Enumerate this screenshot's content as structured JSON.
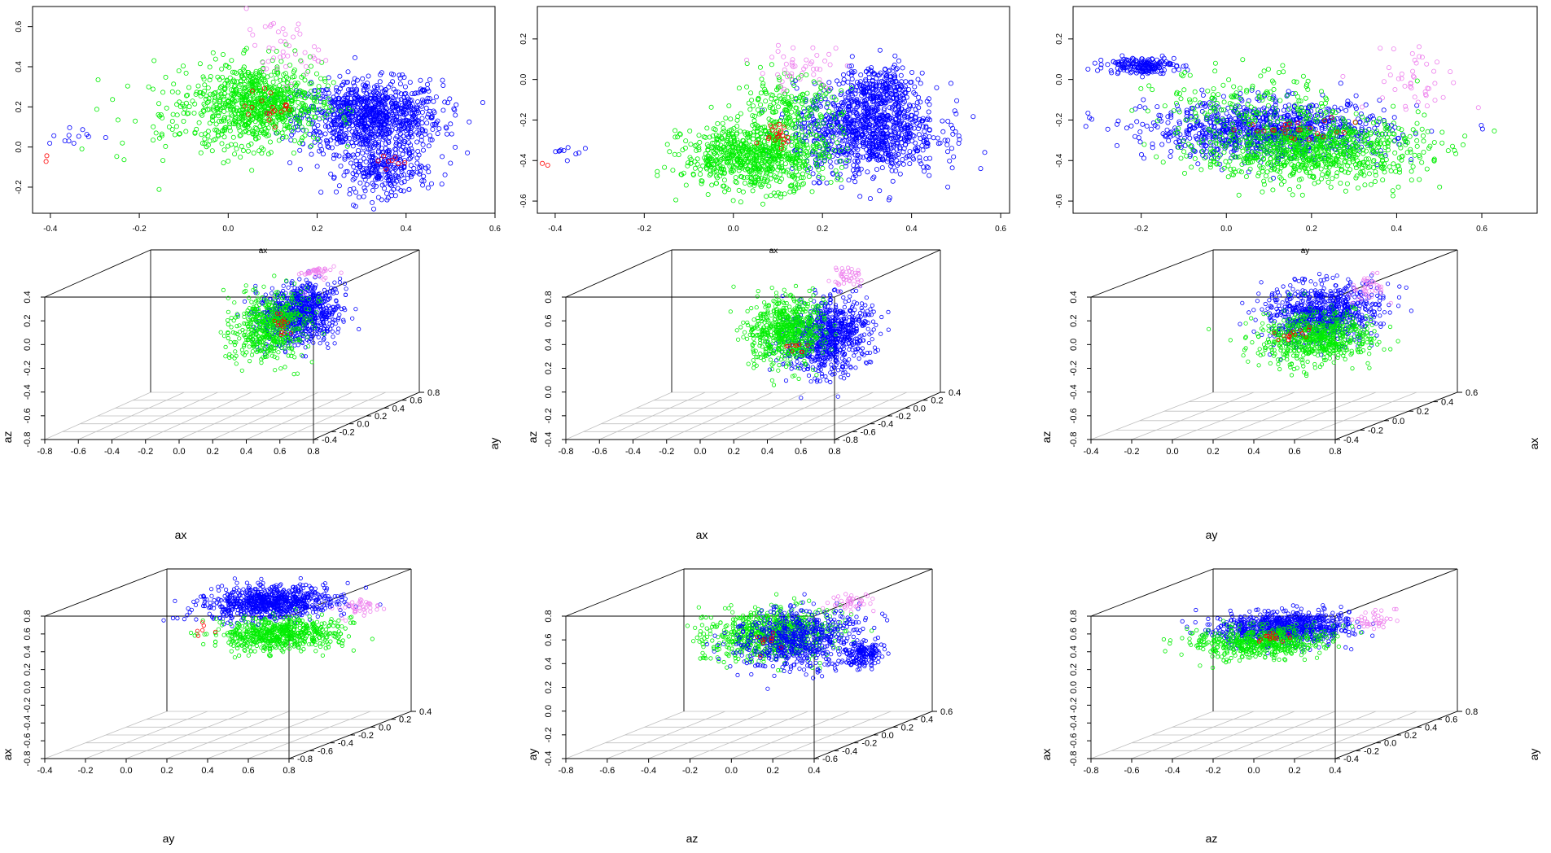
{
  "colors": {
    "blue": "#0000ff",
    "green": "#00ee00",
    "violet": "#ee82ee",
    "red": "#ff0000",
    "axis": "#000000",
    "grid": "#bfbfbf"
  },
  "chart_data": [
    {
      "type": "scatter",
      "xlabel": "ax",
      "ylabel": "",
      "xlim": [
        -0.44,
        0.6
      ],
      "ylim": [
        -0.33,
        0.7
      ],
      "xticks": [
        "-0.4",
        "-0.2",
        "0.0",
        "0.2",
        "0.4",
        "0.6"
      ],
      "yticks": [
        "-0.2",
        "0.0",
        "0.2",
        "0.4",
        "0.6"
      ],
      "clusters": [
        {
          "color": "blue",
          "cx": 0.32,
          "cy": 0.15,
          "sx": 0.08,
          "sy": 0.09,
          "n": 950
        },
        {
          "color": "blue",
          "cx": 0.35,
          "cy": -0.12,
          "sx": 0.05,
          "sy": 0.06,
          "n": 250
        },
        {
          "color": "green",
          "cx": 0.07,
          "cy": 0.22,
          "sx": 0.07,
          "sy": 0.1,
          "n": 750
        },
        {
          "color": "green",
          "cx": -0.05,
          "cy": 0.15,
          "sx": 0.1,
          "sy": 0.12,
          "n": 120
        },
        {
          "color": "violet",
          "cx": 0.12,
          "cy": 0.48,
          "sx": 0.04,
          "sy": 0.08,
          "n": 45
        },
        {
          "color": "red",
          "cx": 0.1,
          "cy": 0.2,
          "sx": 0.03,
          "sy": 0.04,
          "n": 20
        },
        {
          "color": "red",
          "cx": 0.37,
          "cy": -0.1,
          "sx": 0.02,
          "sy": 0.03,
          "n": 8
        },
        {
          "color": "blue",
          "cx": -0.36,
          "cy": 0.06,
          "sx": 0.03,
          "sy": 0.03,
          "n": 12
        },
        {
          "color": "red",
          "cx": -0.41,
          "cy": -0.05,
          "sx": 0.01,
          "sy": 0.03,
          "n": 2
        }
      ]
    },
    {
      "type": "scatter",
      "xlabel": "ax",
      "ylabel": "",
      "xlim": [
        -0.44,
        0.62
      ],
      "ylim": [
        -0.66,
        0.36
      ],
      "xticks": [
        "-0.4",
        "-0.2",
        "0.0",
        "0.2",
        "0.4",
        "0.6"
      ],
      "yticks": [
        "-0.6",
        "-0.4",
        "-0.2",
        "0.0",
        "0.2"
      ],
      "clusters": [
        {
          "color": "blue",
          "cx": 0.3,
          "cy": -0.25,
          "sx": 0.08,
          "sy": 0.11,
          "n": 950
        },
        {
          "color": "blue",
          "cx": 0.33,
          "cy": -0.05,
          "sx": 0.04,
          "sy": 0.06,
          "n": 200
        },
        {
          "color": "green",
          "cx": 0.05,
          "cy": -0.38,
          "sx": 0.08,
          "sy": 0.08,
          "n": 750
        },
        {
          "color": "green",
          "cx": 0.12,
          "cy": -0.15,
          "sx": 0.06,
          "sy": 0.08,
          "n": 200
        },
        {
          "color": "violet",
          "cx": 0.15,
          "cy": 0.05,
          "sx": 0.05,
          "sy": 0.06,
          "n": 45
        },
        {
          "color": "red",
          "cx": 0.1,
          "cy": -0.26,
          "sx": 0.02,
          "sy": 0.03,
          "n": 20
        },
        {
          "color": "blue",
          "cx": -0.37,
          "cy": -0.37,
          "sx": 0.03,
          "sy": 0.03,
          "n": 10
        },
        {
          "color": "red",
          "cx": -0.41,
          "cy": -0.44,
          "sx": 0.01,
          "sy": 0.03,
          "n": 2
        }
      ]
    },
    {
      "type": "scatter",
      "xlabel": "ay",
      "ylabel": "",
      "xlim": [
        -0.36,
        0.73
      ],
      "ylim": [
        -0.66,
        0.36
      ],
      "xticks": [
        "-0.2",
        "0.0",
        "0.2",
        "0.4",
        "0.6"
      ],
      "yticks": [
        "-0.6",
        "-0.4",
        "-0.2",
        "0.0",
        "0.2"
      ],
      "clusters": [
        {
          "color": "blue",
          "cx": 0.1,
          "cy": -0.25,
          "sx": 0.14,
          "sy": 0.07,
          "n": 950
        },
        {
          "color": "blue",
          "cx": -0.2,
          "cy": 0.07,
          "sx": 0.04,
          "sy": 0.02,
          "n": 180
        },
        {
          "color": "green",
          "cx": 0.2,
          "cy": -0.35,
          "sx": 0.13,
          "sy": 0.08,
          "n": 850
        },
        {
          "color": "green",
          "cx": 0.05,
          "cy": -0.1,
          "sx": 0.1,
          "sy": 0.08,
          "n": 150
        },
        {
          "color": "violet",
          "cx": 0.45,
          "cy": 0.0,
          "sx": 0.06,
          "sy": 0.08,
          "n": 45
        },
        {
          "color": "red",
          "cx": 0.15,
          "cy": -0.25,
          "sx": 0.08,
          "sy": 0.03,
          "n": 25
        }
      ]
    },
    {
      "type": "scatter3d",
      "xlabel": "ax",
      "ylabel": "",
      "zlabel": "az",
      "xticks": [
        "-0.8",
        "-0.6",
        "-0.4",
        "-0.2",
        "0.0",
        "0.2",
        "0.4",
        "0.6",
        "0.8"
      ],
      "yticks": [
        "-0.4",
        "-0.2",
        "0.0",
        "0.2",
        "0.4",
        "0.6",
        "0.8"
      ],
      "zticks": [
        "-0.8",
        "-0.6",
        "-0.4",
        "-0.2",
        "0.0",
        "0.2",
        "0.4"
      ],
      "clusters": [
        {
          "color": "blue",
          "cx": 0.45,
          "cy": 0.1,
          "cz": 0.1,
          "sx": 0.1,
          "sy": 0.12,
          "sz": 0.12,
          "n": 800
        },
        {
          "color": "green",
          "cx": 0.3,
          "cy": 0.05,
          "cz": 0.0,
          "sx": 0.1,
          "sy": 0.1,
          "sz": 0.14,
          "n": 500
        },
        {
          "color": "violet",
          "cx": 0.45,
          "cy": 0.3,
          "cz": 0.45,
          "sx": 0.04,
          "sy": 0.05,
          "sz": 0.08,
          "n": 40
        },
        {
          "color": "red",
          "cx": 0.35,
          "cy": 0.1,
          "cz": 0.0,
          "sx": 0.03,
          "sy": 0.03,
          "sz": 0.04,
          "n": 15
        }
      ]
    },
    {
      "type": "scatter3d",
      "xlabel": "ax",
      "ylabel": "ay",
      "zlabel": "az",
      "xticks": [
        "-0.8",
        "-0.6",
        "-0.4",
        "-0.2",
        "0.0",
        "0.2",
        "0.4",
        "0.6",
        "0.8"
      ],
      "yticks": [
        "-0.8",
        "-0.6",
        "-0.4",
        "-0.2",
        "0.0",
        "0.2",
        "0.4"
      ],
      "zticks": [
        "-0.4",
        "-0.2",
        "0.0",
        "0.2",
        "0.4",
        "0.6",
        "0.8"
      ],
      "clusters": [
        {
          "color": "blue",
          "cx": 0.5,
          "cy": -0.3,
          "cz": 0.3,
          "sx": 0.1,
          "sy": 0.15,
          "sz": 0.15,
          "n": 800
        },
        {
          "color": "green",
          "cx": 0.25,
          "cy": -0.3,
          "cz": 0.35,
          "sx": 0.1,
          "sy": 0.1,
          "sz": 0.14,
          "n": 600
        },
        {
          "color": "violet",
          "cx": 0.45,
          "cy": 0.0,
          "cz": 0.7,
          "sx": 0.05,
          "sy": 0.05,
          "sz": 0.05,
          "n": 40
        },
        {
          "color": "red",
          "cx": 0.3,
          "cy": -0.3,
          "cz": 0.2,
          "sx": 0.03,
          "sy": 0.03,
          "sz": 0.03,
          "n": 10
        }
      ]
    },
    {
      "type": "scatter3d",
      "xlabel": "ay",
      "ylabel": "ax",
      "zlabel": "az",
      "xticks": [
        "-0.4",
        "-0.2",
        "0.0",
        "0.2",
        "0.4",
        "0.6",
        "0.8"
      ],
      "yticks": [
        "-0.4",
        "-0.2",
        "0.0",
        "0.2",
        "0.4",
        "0.6"
      ],
      "zticks": [
        "-0.8",
        "-0.6",
        "-0.4",
        "-0.2",
        "0.0",
        "0.2",
        "0.4"
      ],
      "clusters": [
        {
          "color": "blue",
          "cx": 0.35,
          "cy": 0.25,
          "cz": 0.0,
          "sx": 0.12,
          "sy": 0.1,
          "sz": 0.12,
          "n": 800
        },
        {
          "color": "green",
          "cx": 0.4,
          "cy": 0.1,
          "cz": -0.15,
          "sx": 0.13,
          "sy": 0.1,
          "sz": 0.1,
          "n": 600
        },
        {
          "color": "violet",
          "cx": 0.55,
          "cy": 0.3,
          "cz": 0.2,
          "sx": 0.05,
          "sy": 0.05,
          "sz": 0.06,
          "n": 40
        },
        {
          "color": "red",
          "cx": 0.3,
          "cy": 0.1,
          "cz": -0.1,
          "sx": 0.04,
          "sy": 0.03,
          "sz": 0.04,
          "n": 15
        }
      ]
    },
    {
      "type": "scatter3d",
      "xlabel": "ay",
      "ylabel": "",
      "zlabel": "ax",
      "xticks": [
        "-0.4",
        "-0.2",
        "0.0",
        "0.2",
        "0.4",
        "0.6",
        "0.8"
      ],
      "yticks": [
        "-0.8",
        "-0.6",
        "-0.4",
        "-0.2",
        "0.0",
        "0.2",
        "0.4"
      ],
      "zticks": [
        "-0.8",
        "-0.6",
        "-0.4",
        "-0.2",
        "0.0",
        "0.2",
        "0.4",
        "0.6",
        "0.8"
      ],
      "clusters": [
        {
          "color": "blue",
          "cx": 0.3,
          "cy": 0.0,
          "cz": 0.6,
          "sx": 0.15,
          "sy": 0.1,
          "sz": 0.08,
          "n": 800
        },
        {
          "color": "green",
          "cx": 0.35,
          "cy": 0.0,
          "cz": 0.25,
          "sx": 0.15,
          "sy": 0.1,
          "sz": 0.08,
          "n": 600
        },
        {
          "color": "violet",
          "cx": 0.7,
          "cy": 0.1,
          "cz": 0.5,
          "sx": 0.04,
          "sy": 0.04,
          "sz": 0.05,
          "n": 40
        },
        {
          "color": "red",
          "cx": 0.0,
          "cy": 0.0,
          "cz": 0.3,
          "sx": 0.05,
          "sy": 0.03,
          "sz": 0.05,
          "n": 6
        }
      ]
    },
    {
      "type": "scatter3d",
      "xlabel": "az",
      "ylabel": "",
      "zlabel": "ay",
      "xticks": [
        "-0.8",
        "-0.6",
        "-0.4",
        "-0.2",
        "0.0",
        "0.2",
        "0.4"
      ],
      "yticks": [
        "-0.6",
        "-0.4",
        "-0.2",
        "0.0",
        "0.2",
        "0.4",
        "0.6"
      ],
      "zticks": [
        "-0.4",
        "-0.2",
        "0.0",
        "0.2",
        "0.4",
        "0.6",
        "0.8"
      ],
      "clusters": [
        {
          "color": "green",
          "cx": -0.1,
          "cy": 0.0,
          "cz": 0.45,
          "sx": 0.14,
          "sy": 0.12,
          "sz": 0.1,
          "n": 700
        },
        {
          "color": "blue",
          "cx": 0.05,
          "cy": 0.0,
          "cz": 0.4,
          "sx": 0.14,
          "sy": 0.12,
          "sz": 0.12,
          "n": 600
        },
        {
          "color": "blue",
          "cx": 0.25,
          "cy": 0.2,
          "cz": 0.2,
          "sx": 0.04,
          "sy": 0.05,
          "sz": 0.05,
          "n": 150
        },
        {
          "color": "violet",
          "cx": 0.2,
          "cy": 0.2,
          "cz": 0.65,
          "sx": 0.05,
          "sy": 0.05,
          "sz": 0.05,
          "n": 40
        },
        {
          "color": "red",
          "cx": -0.1,
          "cy": 0.0,
          "cz": 0.4,
          "sx": 0.03,
          "sy": 0.03,
          "sz": 0.04,
          "n": 10
        }
      ]
    },
    {
      "type": "scatter3d",
      "xlabel": "az",
      "ylabel": "ay",
      "zlabel": "ax",
      "xticks": [
        "-0.8",
        "-0.6",
        "-0.4",
        "-0.2",
        "0.0",
        "0.2",
        "0.4"
      ],
      "yticks": [
        "-0.4",
        "-0.2",
        "0.0",
        "0.2",
        "0.4",
        "0.6",
        "0.8"
      ],
      "zticks": [
        "-0.8",
        "-0.6",
        "-0.4",
        "-0.2",
        "0.0",
        "0.2",
        "0.4",
        "0.6",
        "0.8"
      ],
      "clusters": [
        {
          "color": "blue",
          "cx": -0.1,
          "cy": 0.1,
          "cz": 0.45,
          "sx": 0.16,
          "sy": 0.1,
          "sz": 0.08,
          "n": 800
        },
        {
          "color": "green",
          "cx": -0.2,
          "cy": 0.05,
          "cz": 0.3,
          "sx": 0.15,
          "sy": 0.1,
          "sz": 0.08,
          "n": 500
        },
        {
          "color": "violet",
          "cx": 0.25,
          "cy": 0.3,
          "cz": 0.45,
          "sx": 0.05,
          "sy": 0.05,
          "sz": 0.05,
          "n": 40
        },
        {
          "color": "red",
          "cx": -0.15,
          "cy": 0.1,
          "cz": 0.35,
          "sx": 0.04,
          "sy": 0.03,
          "sz": 0.03,
          "n": 15
        }
      ]
    }
  ]
}
